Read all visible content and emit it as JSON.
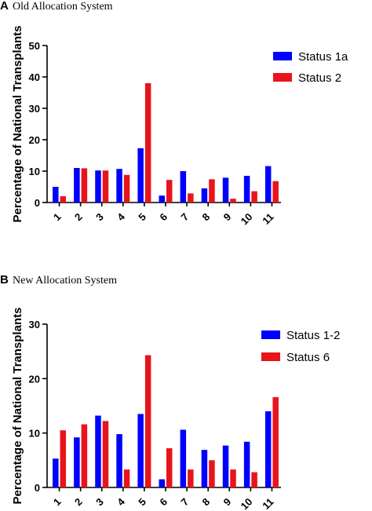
{
  "colors": {
    "blue": "#0000ff",
    "red": "#e8141b"
  },
  "chart_data": [
    {
      "type": "bar",
      "panel": "A",
      "title": "Old Allocation System",
      "xlabel": "",
      "ylabel": "Percentage of National Transplants",
      "ylim": [
        0,
        50
      ],
      "yticks": [
        0,
        10,
        20,
        30,
        40,
        50
      ],
      "legend_position": "top-right",
      "categories": [
        "1",
        "2",
        "3",
        "4",
        "5",
        "6",
        "7",
        "8",
        "9",
        "10",
        "11"
      ],
      "series": [
        {
          "name": "Status 1a",
          "color": "#0000ff",
          "values": [
            5.0,
            11.0,
            10.2,
            10.7,
            17.3,
            2.2,
            10.0,
            4.5,
            7.9,
            8.5,
            11.6
          ]
        },
        {
          "name": "Status 2",
          "color": "#e8141b",
          "values": [
            2.0,
            10.9,
            10.2,
            8.8,
            38.0,
            7.2,
            2.9,
            7.4,
            1.2,
            3.6,
            6.8
          ]
        }
      ]
    },
    {
      "type": "bar",
      "panel": "B",
      "title": "New Allocation System",
      "xlabel": "",
      "ylabel": "Percentage of National Transplants",
      "ylim": [
        0,
        30
      ],
      "yticks": [
        0,
        10,
        20,
        30
      ],
      "legend_position": "top-right",
      "categories": [
        "1",
        "2",
        "3",
        "4",
        "5",
        "6",
        "7",
        "8",
        "9",
        "10",
        "11"
      ],
      "series": [
        {
          "name": "Status 1-2",
          "color": "#0000ff",
          "values": [
            5.3,
            9.2,
            13.2,
            9.8,
            13.5,
            1.5,
            10.6,
            6.9,
            7.7,
            8.4,
            14.0
          ]
        },
        {
          "name": "Status 6",
          "color": "#e8141b",
          "values": [
            10.5,
            11.6,
            12.2,
            3.3,
            24.3,
            7.2,
            3.3,
            5.0,
            3.3,
            2.8,
            16.6
          ]
        }
      ]
    }
  ]
}
